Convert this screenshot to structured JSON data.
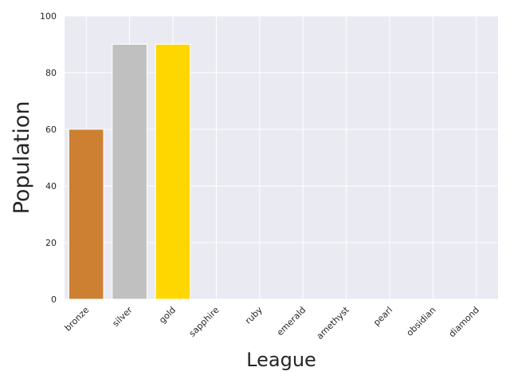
{
  "chart_data": {
    "type": "bar",
    "title": "",
    "xlabel": "League",
    "ylabel": "Population",
    "categories": [
      "bronze",
      "silver",
      "gold",
      "sapphire",
      "ruby",
      "emerald",
      "amethyst",
      "pearl",
      "obsidian",
      "diamond"
    ],
    "values": [
      60,
      90,
      90,
      0,
      0,
      0,
      0,
      0,
      0,
      0
    ],
    "bar_colors": [
      "#cd7f32",
      "#c0c0c0",
      "#ffd700",
      "#0f52ba",
      "#e0115f",
      "#50c878",
      "#9966cc",
      "#eae0c8",
      "#3d3d3d",
      "#b9f2ff"
    ],
    "ylim": [
      0,
      100
    ],
    "yticks": [
      "0",
      "20",
      "40",
      "60",
      "80",
      "100"
    ],
    "grid": true,
    "background_color": "#eaeaf2",
    "grid_color": "#ffffff"
  }
}
